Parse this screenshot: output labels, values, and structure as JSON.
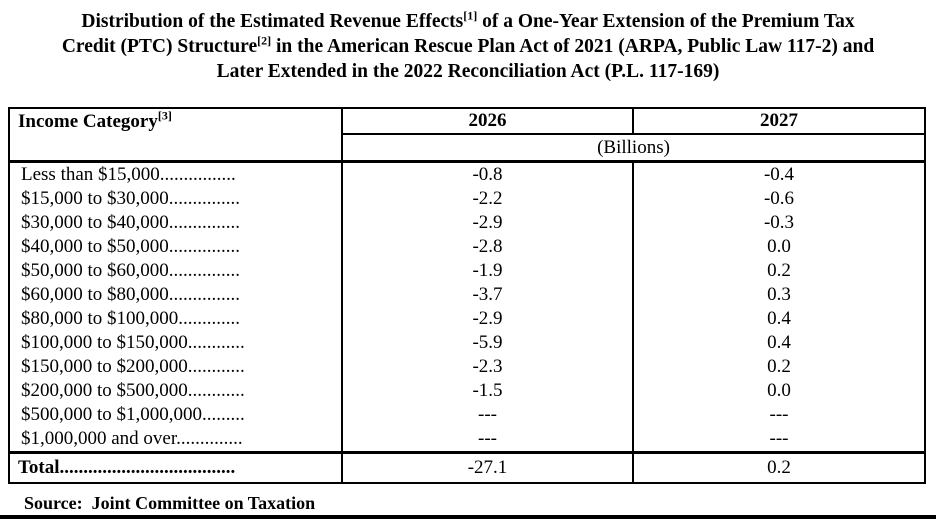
{
  "title_lines": [
    {
      "pre": "Distribution of the Estimated Revenue Effects",
      "sup": "[1]",
      "post": " of a One-Year Extension of the Premium Tax"
    },
    {
      "pre": "Credit (PTC) Structure",
      "sup": "[2]",
      "post": " in the American Rescue Plan Act of 2021 (ARPA, Public Law 117-2) and"
    },
    {
      "pre": "Later Extended in the 2022 Reconciliation Act (P.L. 117-169)",
      "sup": "",
      "post": ""
    }
  ],
  "table": {
    "header": {
      "income_category_label": "Income Category",
      "income_category_sup": "[3]",
      "col_2026": "2026",
      "col_2027": "2027",
      "units": "(Billions)"
    },
    "rows": [
      {
        "label": "Less than $15,000................",
        "v2026": "-0.8",
        "v2027": "-0.4"
      },
      {
        "label": "$15,000 to $30,000...............",
        "v2026": "-2.2",
        "v2027": "-0.6"
      },
      {
        "label": "$30,000 to $40,000...............",
        "v2026": "-2.9",
        "v2027": "-0.3"
      },
      {
        "label": "$40,000 to $50,000...............",
        "v2026": "-2.8",
        "v2027": "0.0"
      },
      {
        "label": "$50,000 to $60,000...............",
        "v2026": "-1.9",
        "v2027": "0.2"
      },
      {
        "label": "$60,000 to $80,000...............",
        "v2026": "-3.7",
        "v2027": "0.3"
      },
      {
        "label": "$80,000 to $100,000.............",
        "v2026": "-2.9",
        "v2027": "0.4"
      },
      {
        "label": "$100,000 to $150,000............",
        "v2026": "-5.9",
        "v2027": "0.4"
      },
      {
        "label": "$150,000 to $200,000............",
        "v2026": "-2.3",
        "v2027": "0.2"
      },
      {
        "label": "$200,000 to $500,000............",
        "v2026": "-1.5",
        "v2027": "0.0"
      },
      {
        "label": "$500,000 to $1,000,000.........",
        "v2026": "---",
        "v2027": "---"
      },
      {
        "label": "$1,000,000 and over..............",
        "v2026": "---",
        "v2027": "---"
      }
    ],
    "total": {
      "label": "Total.....................................",
      "v2026": "-27.1",
      "v2027": "0.2"
    }
  },
  "source": "Source:  Joint Committee on Taxation",
  "colors": {
    "text": "#000000",
    "background": "#ffffff",
    "border": "#000000"
  }
}
